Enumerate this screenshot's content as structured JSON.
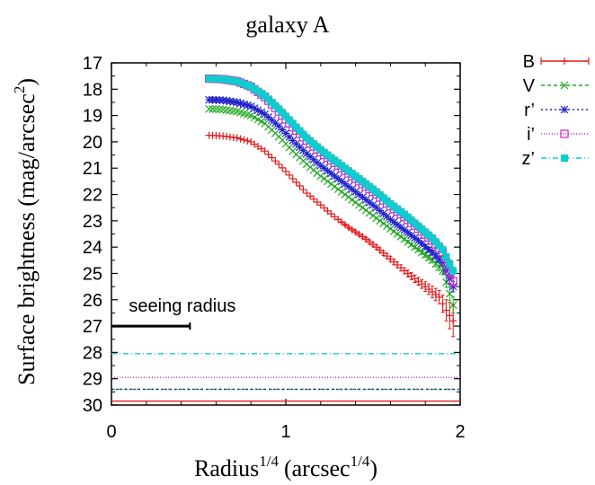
{
  "chart_data": {
    "type": "line",
    "title": "galaxy A",
    "xlabel_base": "Radius",
    "xlabel_exp": "1/4",
    "xlabel_unit": "(arcsec",
    "xlabel_unit_exp": "1/4",
    "xlabel_close": ")",
    "ylabel_main": "Surface brightness (mag/arcsec",
    "ylabel_exp": "2",
    "ylabel_close": ")",
    "xlim": [
      0,
      2
    ],
    "ylim": [
      30,
      17
    ],
    "xticks": [
      0,
      1,
      2
    ],
    "yticks": [
      17,
      18,
      19,
      20,
      21,
      22,
      23,
      24,
      25,
      26,
      27,
      28,
      29,
      30
    ],
    "legend_position": "right, outside plot",
    "series": [
      {
        "name": "B",
        "color": "#e41a1c",
        "marker": "plus",
        "dash": "",
        "x": [
          0.56,
          0.64,
          0.72,
          0.8,
          0.88,
          0.96,
          1.04,
          1.12,
          1.2,
          1.28,
          1.36,
          1.44,
          1.52,
          1.6,
          1.68,
          1.76,
          1.82,
          1.88,
          1.92,
          1.96
        ],
        "y": [
          19.75,
          19.78,
          19.85,
          20.0,
          20.35,
          20.85,
          21.4,
          21.95,
          22.4,
          22.85,
          23.25,
          23.6,
          24.0,
          24.45,
          24.9,
          25.3,
          25.6,
          25.9,
          26.4,
          26.8
        ],
        "err": [
          0,
          0,
          0,
          0,
          0,
          0,
          0,
          0,
          0,
          0,
          0.05,
          0.06,
          0.08,
          0.1,
          0.12,
          0.15,
          0.2,
          0.25,
          0.4,
          0.6
        ],
        "floor": 29.85
      },
      {
        "name": "V",
        "color": "#22aa22",
        "marker": "x",
        "dash": "4,3",
        "x": [
          0.56,
          0.64,
          0.72,
          0.8,
          0.88,
          0.96,
          1.04,
          1.12,
          1.2,
          1.28,
          1.36,
          1.44,
          1.52,
          1.6,
          1.68,
          1.76,
          1.84,
          1.9,
          1.96
        ],
        "y": [
          18.75,
          18.77,
          18.85,
          19.0,
          19.3,
          19.8,
          20.35,
          20.85,
          21.3,
          21.7,
          22.1,
          22.5,
          22.9,
          23.3,
          23.7,
          24.1,
          24.5,
          24.9,
          26.2
        ],
        "err": [
          0,
          0,
          0,
          0,
          0,
          0,
          0,
          0,
          0,
          0,
          0,
          0,
          0,
          0.03,
          0.05,
          0.07,
          0.1,
          0.15,
          0.3
        ],
        "floor": 29.4
      },
      {
        "name": "r’",
        "color": "#2222cc",
        "marker": "star",
        "dash": "2,3",
        "x": [
          0.56,
          0.64,
          0.72,
          0.8,
          0.88,
          0.96,
          1.04,
          1.12,
          1.2,
          1.28,
          1.36,
          1.44,
          1.52,
          1.6,
          1.68,
          1.76,
          1.84,
          1.9,
          1.96
        ],
        "y": [
          18.4,
          18.42,
          18.5,
          18.65,
          18.95,
          19.4,
          19.95,
          20.45,
          20.9,
          21.3,
          21.7,
          22.1,
          22.5,
          22.95,
          23.35,
          23.75,
          24.2,
          24.6,
          25.5
        ],
        "err": [
          0,
          0,
          0,
          0,
          0,
          0,
          0,
          0,
          0,
          0,
          0,
          0,
          0,
          0,
          0.04,
          0.06,
          0.08,
          0.12,
          0.2
        ],
        "floor": 29.4
      },
      {
        "name": "i’",
        "color": "#cc22cc",
        "marker": "box",
        "dash": "1,2",
        "x": [
          0.56,
          0.64,
          0.72,
          0.8,
          0.88,
          0.96,
          1.04,
          1.12,
          1.2,
          1.28,
          1.36,
          1.44,
          1.52,
          1.6,
          1.68,
          1.76,
          1.84,
          1.9,
          1.96
        ],
        "y": [
          17.6,
          17.62,
          17.7,
          17.9,
          18.3,
          18.85,
          19.45,
          19.95,
          20.4,
          20.8,
          21.2,
          21.6,
          22.0,
          22.45,
          22.85,
          23.3,
          23.75,
          24.2,
          25.3
        ],
        "err": [
          0,
          0,
          0,
          0,
          0,
          0,
          0,
          0,
          0,
          0,
          0,
          0,
          0,
          0,
          0.04,
          0.06,
          0.08,
          0.12,
          0.2
        ],
        "floor": 28.95
      },
      {
        "name": "z’",
        "color": "#11cccc",
        "marker": "fillbox",
        "dash": "6,3,1,3",
        "x": [
          0.56,
          0.64,
          0.72,
          0.8,
          0.88,
          0.96,
          1.04,
          1.12,
          1.2,
          1.28,
          1.36,
          1.44,
          1.52,
          1.6,
          1.68,
          1.76,
          1.84,
          1.9,
          1.96
        ],
        "y": [
          17.6,
          17.62,
          17.7,
          17.9,
          18.25,
          18.75,
          19.3,
          19.85,
          20.3,
          20.7,
          21.1,
          21.5,
          21.9,
          22.35,
          22.75,
          23.2,
          23.65,
          24.1,
          24.9
        ],
        "err": [
          0,
          0,
          0,
          0,
          0,
          0,
          0,
          0,
          0,
          0,
          0,
          0,
          0,
          0,
          0.03,
          0.05,
          0.07,
          0.1,
          0.15
        ],
        "floor": 28.05
      }
    ],
    "seeing": {
      "label": "seeing radius",
      "x": [
        0,
        0.45
      ],
      "y": 27.0
    }
  }
}
